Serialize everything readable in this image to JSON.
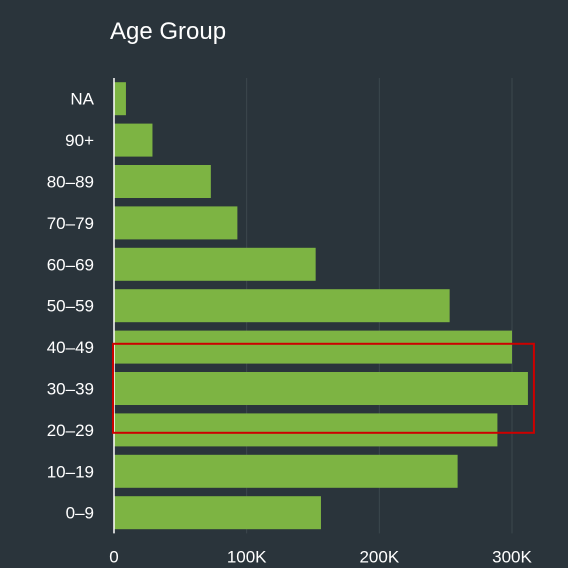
{
  "chart_data": {
    "type": "bar",
    "orientation": "horizontal",
    "title": "Age Group",
    "categories": [
      "NA",
      "90+",
      "80–89",
      "70–79",
      "60–69",
      "50–59",
      "40–49",
      "30–39",
      "20–29",
      "10–19",
      "0–9"
    ],
    "values": [
      9000,
      29000,
      73000,
      93000,
      152000,
      253000,
      300000,
      312000,
      289000,
      259000,
      156000
    ],
    "xlim": [
      0,
      325000
    ],
    "x_ticks": [
      0,
      100000,
      200000,
      300000
    ],
    "x_tick_labels": [
      "0",
      "100K",
      "200K",
      "300K"
    ],
    "grid": "vertical",
    "highlight": {
      "categories": [
        "40–49",
        "30–39",
        "20–29"
      ],
      "color": "#cc0000"
    },
    "colors": {
      "bar": "#7db443",
      "background": "#2a343b",
      "grid": "#3c474e",
      "axis": "#ffffff"
    }
  }
}
